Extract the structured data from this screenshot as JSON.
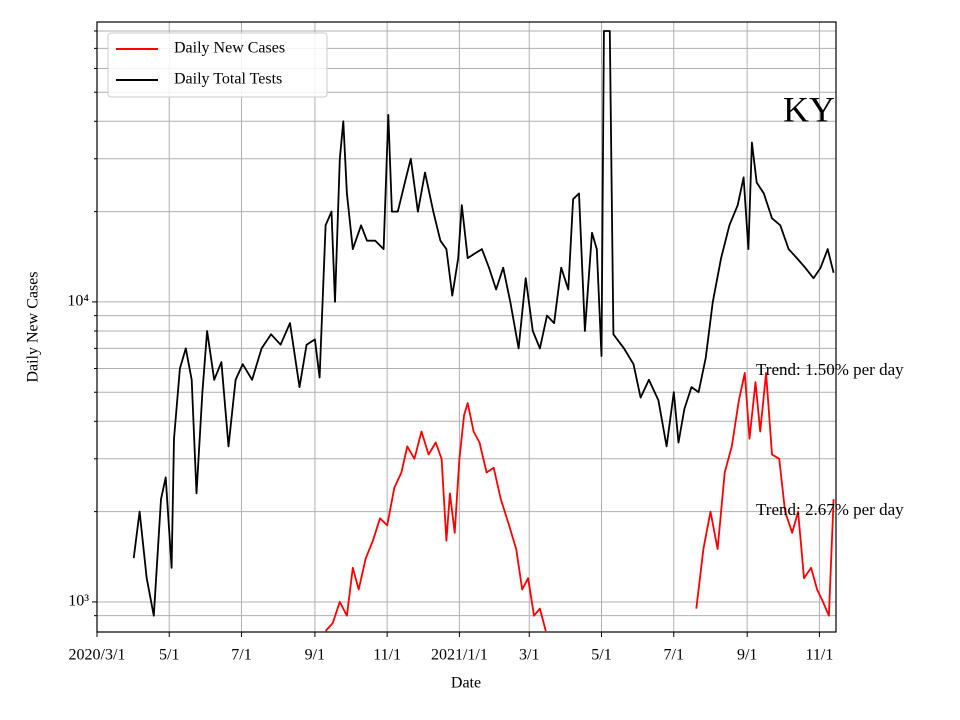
{
  "chart_data": {
    "type": "line",
    "ylabel": "Daily New Cases",
    "xlabel": "Date",
    "log_y": true,
    "grid": true,
    "legend": "upper left",
    "xlim": [
      "2020-03-01",
      "2021-11-15"
    ],
    "xticks": [
      {
        "value": "2020-03-01",
        "label": "2020/3/1"
      },
      {
        "value": "2020-05-01",
        "label": "5/1"
      },
      {
        "value": "2020-07-01",
        "label": "7/1"
      },
      {
        "value": "2020-09-01",
        "label": "9/1"
      },
      {
        "value": "2020-11-01",
        "label": "11/1"
      },
      {
        "value": "2021-01-01",
        "label": "2021/1/1"
      },
      {
        "value": "2021-03-01",
        "label": "3/1"
      },
      {
        "value": "2021-05-01",
        "label": "5/1"
      },
      {
        "value": "2021-07-01",
        "label": "7/1"
      },
      {
        "value": "2021-09-01",
        "label": "9/1"
      },
      {
        "value": "2021-11-01",
        "label": "11/1"
      }
    ],
    "ylim": [
      794,
      85700
    ],
    "yticks": [
      {
        "value": 1000,
        "label": "10³"
      },
      {
        "value": 10000,
        "label": "10⁴"
      }
    ],
    "yminorticks": [
      900,
      2000,
      3000,
      4000,
      5000,
      6000,
      7000,
      8000,
      9000,
      20000,
      30000,
      40000,
      50000,
      60000,
      70000,
      80000
    ],
    "annotations": [
      {
        "text": "KY"
      },
      {
        "text": "Trend: 1.50% per day"
      },
      {
        "text": "Trend: 2.67% per day"
      }
    ],
    "series": [
      {
        "name": "Daily New Cases",
        "color": "#ff0000",
        "x": [
          "2020-09-10",
          "2020-09-16",
          "2020-09-22",
          "2020-09-28",
          "2020-10-03",
          "2020-10-08",
          "2020-10-14",
          "2020-10-20",
          "2020-10-26",
          "2020-11-01",
          "2020-11-07",
          "2020-11-13",
          "2020-11-18",
          "2020-11-24",
          "2020-11-30",
          "2020-12-06",
          "2020-12-12",
          "2020-12-17",
          "2020-12-21",
          "2020-12-24",
          "2020-12-28",
          "2021-01-01",
          "2021-01-05",
          "2021-01-08",
          "2021-01-13",
          "2021-01-18",
          "2021-01-24",
          "2021-01-30",
          "2021-02-05",
          "2021-02-12",
          "2021-02-18",
          "2021-02-23",
          "2021-02-28",
          "2021-03-05",
          "2021-03-10",
          "2021-03-15",
          "2021-05-01",
          "2021-07-20",
          "2021-07-26",
          "2021-08-01",
          "2021-08-07",
          "2021-08-13",
          "2021-08-19",
          "2021-08-25",
          "2021-08-30",
          "2021-09-03",
          "2021-09-08",
          "2021-09-12",
          "2021-09-17",
          "2021-09-22",
          "2021-09-28",
          "2021-10-03",
          "2021-10-09",
          "2021-10-14",
          "2021-10-19",
          "2021-10-25",
          "2021-10-30",
          "2021-11-04",
          "2021-11-09",
          "2021-11-13"
        ],
        "values": [
          800,
          850,
          1000,
          900,
          1300,
          1100,
          1400,
          1600,
          1900,
          1800,
          2400,
          2700,
          3300,
          3000,
          3700,
          3100,
          3400,
          3000,
          1600,
          2300,
          1700,
          3000,
          4200,
          4600,
          3700,
          3400,
          2700,
          2800,
          2200,
          1800,
          1500,
          1100,
          1200,
          900,
          950,
          800,
          null,
          950,
          1500,
          2000,
          1500,
          2700,
          3300,
          4700,
          5800,
          3500,
          5400,
          3700,
          5800,
          3100,
          3000,
          2000,
          1700,
          2000,
          1200,
          1300,
          1100,
          1000,
          900,
          2200
        ]
      },
      {
        "name": "Daily Total Tests",
        "color": "#000000",
        "x": [
          "2020-04-01",
          "2020-04-06",
          "2020-04-12",
          "2020-04-18",
          "2020-04-24",
          "2020-04-28",
          "2020-05-03",
          "2020-05-05",
          "2020-05-10",
          "2020-05-15",
          "2020-05-20",
          "2020-05-24",
          "2020-05-29",
          "2020-06-02",
          "2020-06-08",
          "2020-06-14",
          "2020-06-20",
          "2020-06-26",
          "2020-07-02",
          "2020-07-10",
          "2020-07-18",
          "2020-07-26",
          "2020-08-03",
          "2020-08-11",
          "2020-08-19",
          "2020-08-25",
          "2020-09-01",
          "2020-09-05",
          "2020-09-10",
          "2020-09-15",
          "2020-09-18",
          "2020-09-22",
          "2020-09-25",
          "2020-09-28",
          "2020-10-03",
          "2020-10-10",
          "2020-10-15",
          "2020-10-22",
          "2020-10-29",
          "2020-11-02",
          "2020-11-05",
          "2020-11-10",
          "2020-11-17",
          "2020-11-21",
          "2020-11-27",
          "2020-12-03",
          "2020-12-10",
          "2020-12-16",
          "2020-12-21",
          "2020-12-26",
          "2020-12-31",
          "2021-01-03",
          "2021-01-08",
          "2021-01-14",
          "2021-01-20",
          "2021-01-26",
          "2021-02-01",
          "2021-02-07",
          "2021-02-13",
          "2021-02-20",
          "2021-02-26",
          "2021-03-04",
          "2021-03-10",
          "2021-03-16",
          "2021-03-22",
          "2021-03-28",
          "2021-04-03",
          "2021-04-07",
          "2021-04-12",
          "2021-04-17",
          "2021-04-23",
          "2021-04-27",
          "2021-05-01",
          "2021-05-03",
          "2021-05-08",
          "2021-05-11",
          "2021-05-20",
          "2021-05-28",
          "2021-06-03",
          "2021-06-10",
          "2021-06-18",
          "2021-06-25",
          "2021-07-01",
          "2021-07-05",
          "2021-07-10",
          "2021-07-16",
          "2021-07-22",
          "2021-07-28",
          "2021-08-03",
          "2021-08-10",
          "2021-08-17",
          "2021-08-24",
          "2021-08-29",
          "2021-09-02",
          "2021-09-05",
          "2021-09-09",
          "2021-09-15",
          "2021-09-22",
          "2021-09-29",
          "2021-10-06",
          "2021-10-13",
          "2021-10-20",
          "2021-10-27",
          "2021-11-02",
          "2021-11-08",
          "2021-11-13"
        ],
        "values": [
          1400,
          2000,
          1200,
          900,
          2200,
          2600,
          1300,
          3500,
          6000,
          7000,
          5500,
          2300,
          5000,
          8000,
          5500,
          6300,
          3300,
          5500,
          6200,
          5500,
          7000,
          7800,
          7200,
          8500,
          5200,
          7200,
          7500,
          5600,
          18000,
          20000,
          10000,
          30000,
          40000,
          23000,
          15000,
          18000,
          16000,
          16000,
          15000,
          42000,
          20000,
          20000,
          26000,
          30000,
          20000,
          27000,
          20000,
          16000,
          15000,
          10500,
          14000,
          21000,
          14000,
          14500,
          15000,
          13000,
          11000,
          13000,
          10000,
          7000,
          12000,
          8000,
          7000,
          9000,
          8500,
          13000,
          11000,
          22000,
          23000,
          8000,
          17000,
          15000,
          6600,
          80000,
          80000,
          7800,
          7000,
          6200,
          4800,
          5500,
          4700,
          3300,
          5000,
          3400,
          4400,
          5200,
          5000,
          6500,
          10000,
          14000,
          18000,
          21000,
          26000,
          15000,
          34000,
          25000,
          23000,
          19000,
          18000,
          15000,
          14000,
          13000,
          12000,
          13000,
          15000,
          12500
        ]
      }
    ]
  }
}
